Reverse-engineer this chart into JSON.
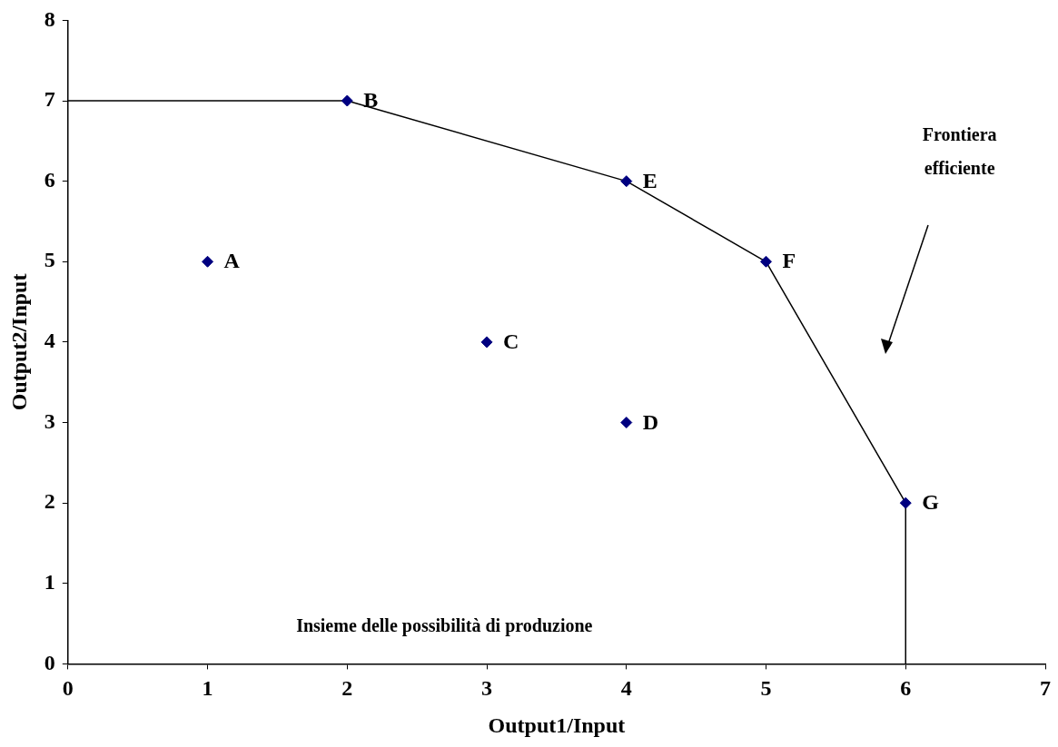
{
  "chart_data": {
    "type": "scatter",
    "xlabel": "Output1/Input",
    "ylabel": "Output2/Input",
    "xlim": [
      0,
      7
    ],
    "xticks": [
      0,
      1,
      2,
      3,
      4,
      5,
      6,
      7
    ],
    "ylim": [
      0,
      8
    ],
    "yticks": [
      0,
      1,
      2,
      3,
      4,
      5,
      6,
      7,
      8
    ],
    "grid": false,
    "legend": false,
    "marker": "diamond",
    "series": [
      {
        "color": "#000080",
        "x": [
          1,
          2,
          3,
          4,
          4,
          5,
          6
        ],
        "values": [
          5,
          7,
          4,
          3,
          6,
          5,
          2
        ]
      },
      {
        "type": "line",
        "color": "#000000",
        "marker": "none",
        "line_style": "solid",
        "x": [
          0,
          2,
          4,
          5,
          6,
          6
        ],
        "values": [
          7,
          7,
          6,
          5,
          2,
          0
        ]
      }
    ],
    "annotations": [
      {
        "text": "A",
        "x": 1,
        "y": 5
      },
      {
        "text": "B",
        "x": 2,
        "y": 7
      },
      {
        "text": "C",
        "x": 3,
        "y": 4
      },
      {
        "text": "D",
        "x": 4,
        "y": 3
      },
      {
        "text": "E",
        "x": 4,
        "y": 6
      },
      {
        "text": "F",
        "x": 5,
        "y": 5
      },
      {
        "text": "G",
        "x": 6,
        "y": 2
      },
      "Insieme delle possibilità di produzione",
      "Frontiera efficiente"
    ]
  }
}
